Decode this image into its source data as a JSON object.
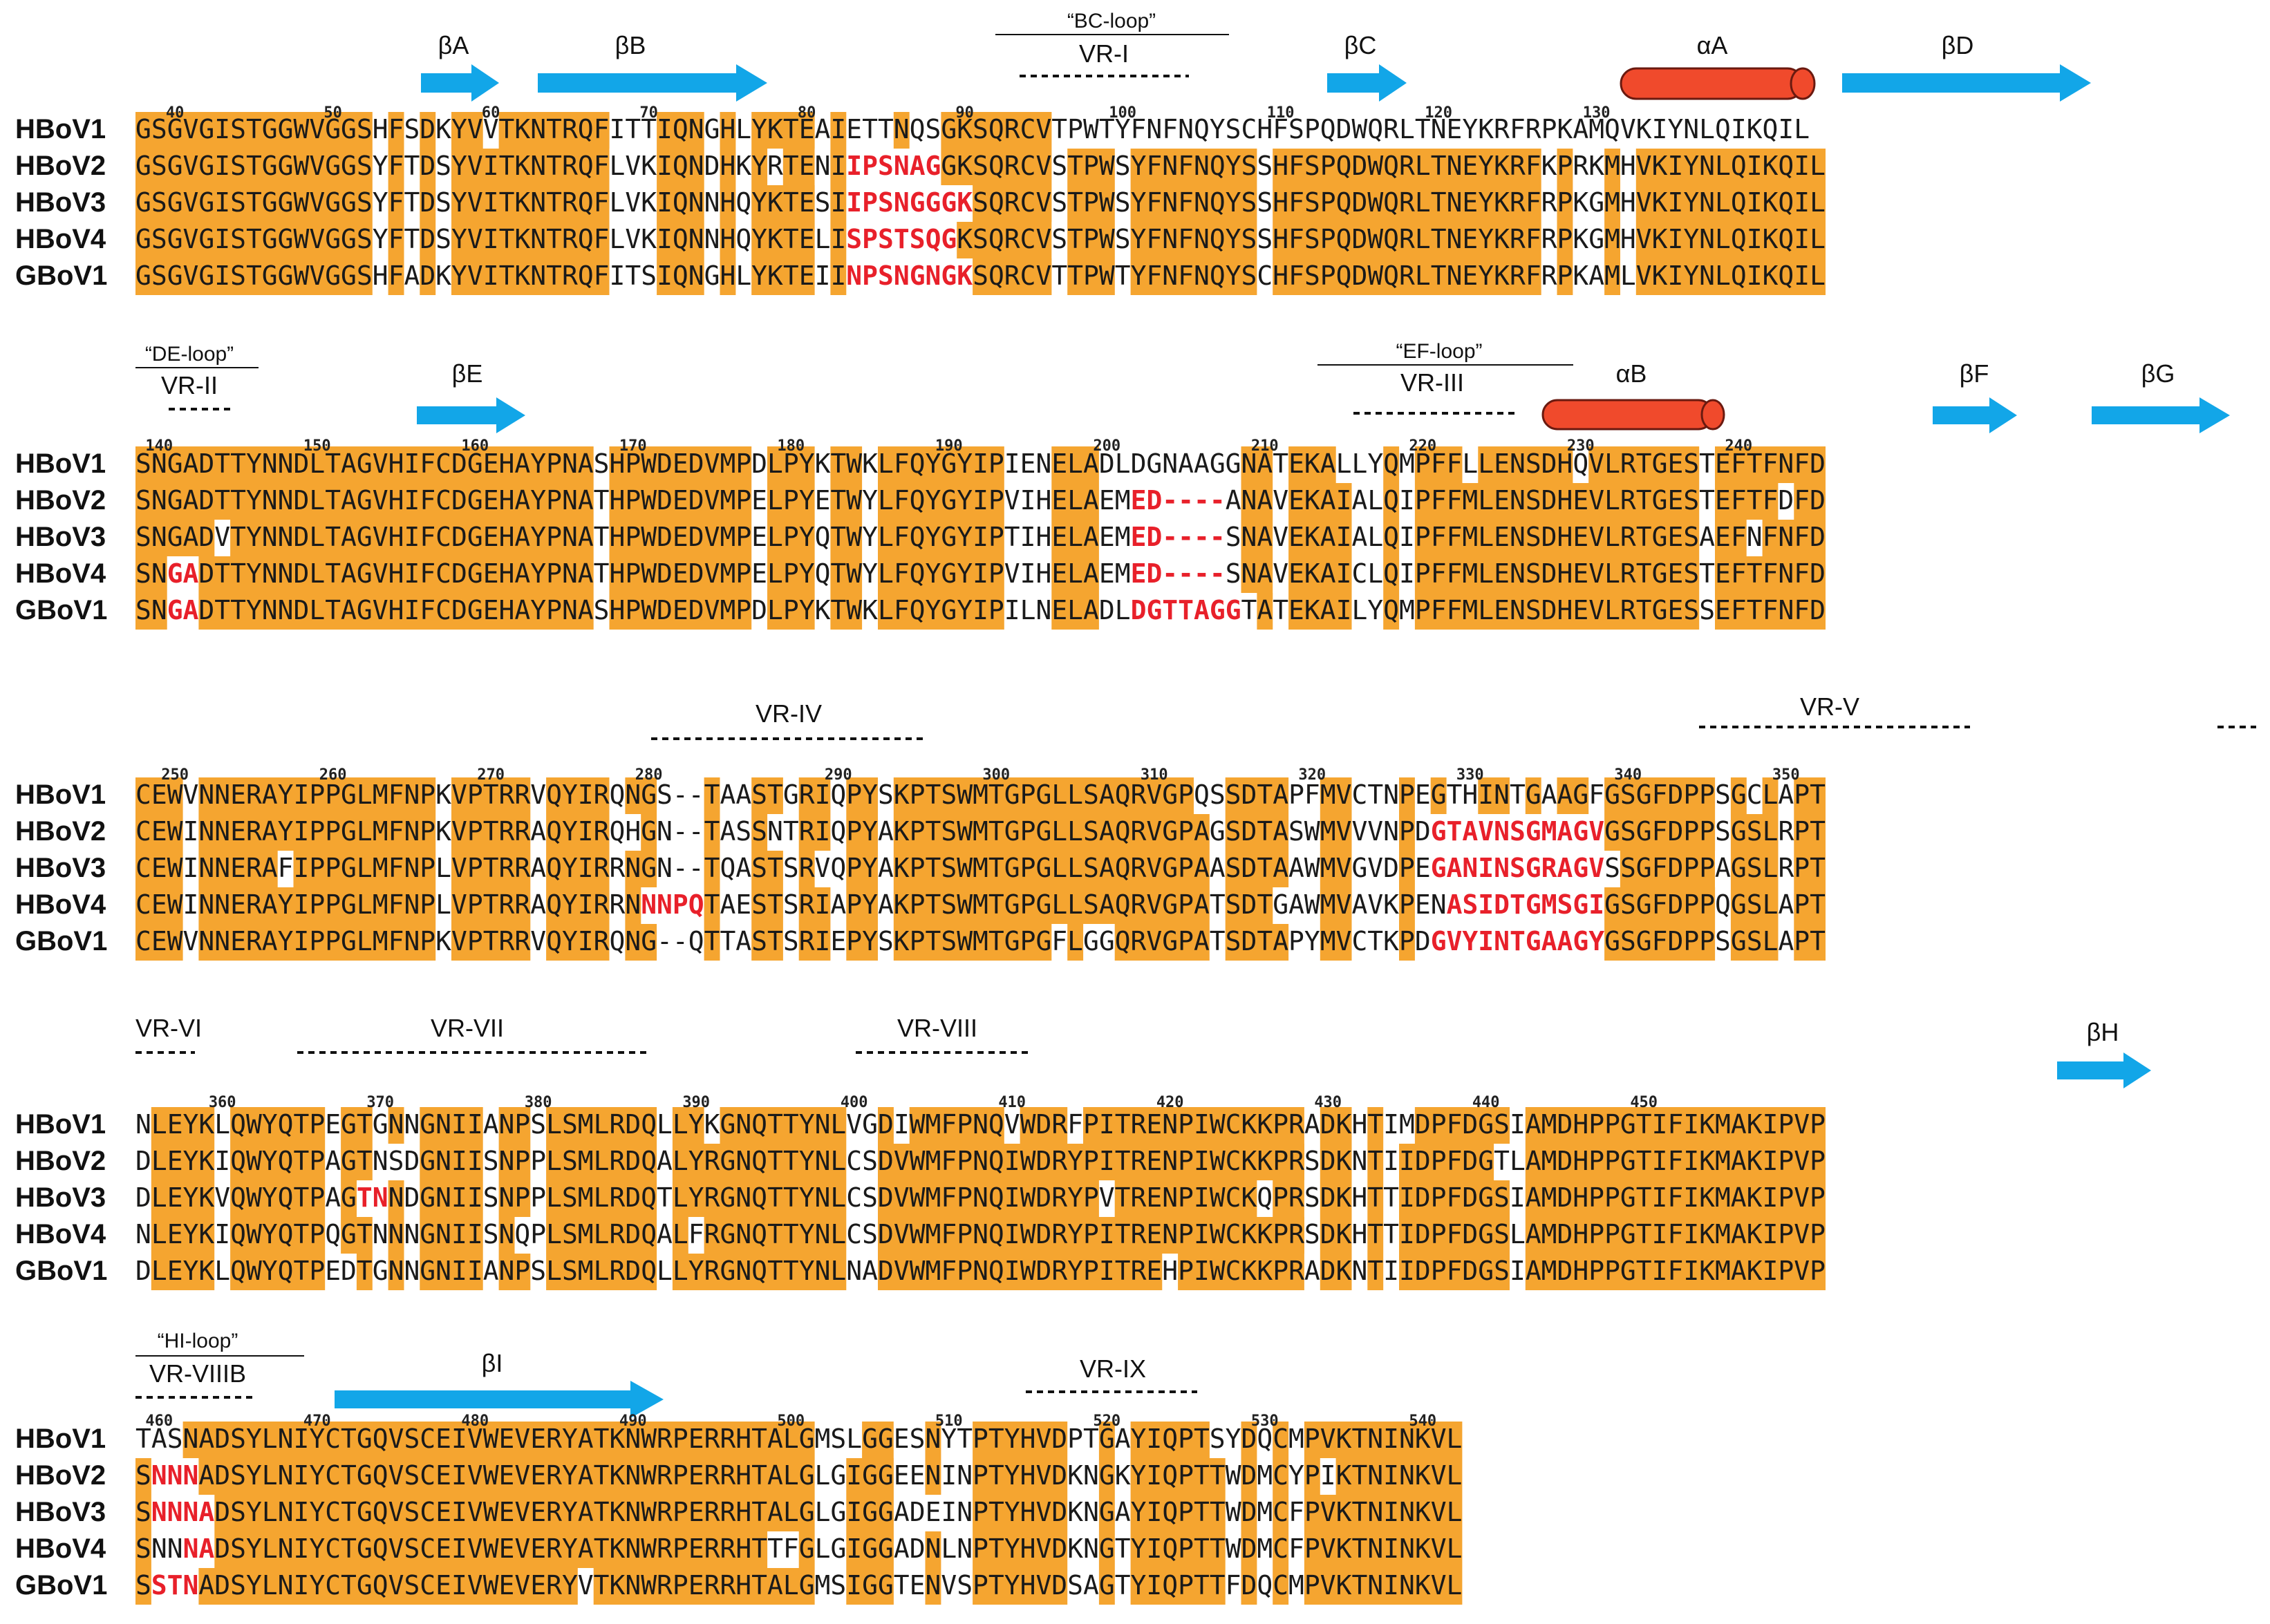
{
  "colors": {
    "highlight": "#f5a530",
    "arrow": "#12a6e8",
    "helix": "#f04a2c",
    "insertion": "#e8202a"
  },
  "organisms": [
    "HBoV1",
    "HBoV2",
    "HBoV3",
    "HBoV4",
    "GBoV1"
  ],
  "blocks": [
    {
      "rows": [
        {
          "name": "HBoV1",
          "segments": [
            {
              "text": "GSGVGISTGGWVGGSHFSDKYVVTKNTRQFITTIQNGHLYKTEAIETTNQSGKSQRCVTPWTYFNFNQYSCHFSPQDWQRLTNEYKRFRPKAMQVKIYNLQIKQIL"
            }
          ]
        },
        {
          "name": "HBoV2",
          "segments": [
            {
              "text": "GSGVGISTGGWVGGSYFTDSYVITKNTRQFLVKIQNDHKYRTENI"
            },
            {
              "text": "IPSNAG",
              "ins": true
            },
            {
              "text": "GKSQRCVSTPWSYFNFNQYSSHFSPQDWQRLTNEYKRFKPRKMHVKIYNLQIKQIL"
            }
          ]
        },
        {
          "name": "HBoV3",
          "segments": [
            {
              "text": "GSGVGISTGGWVGGSYFTDSYVITKNTRQFLVKIQNNHQYKTESI"
            },
            {
              "text": "IPSNGGGK",
              "ins": true
            },
            {
              "text": "SQRCVSTPWSYFNFNQYSSHFSPQDWQRLTNEYKRFRPKGMHVKIYNLQIKQIL"
            }
          ]
        },
        {
          "name": "HBoV4",
          "segments": [
            {
              "text": "GSGVGISTGGWVGGSYFTDSYVITKNTRQFLVKIQNNHQYKTELI"
            },
            {
              "text": "SPSTSQG",
              "ins": true
            },
            {
              "text": "KSQRCVSTPWSYFNFNQYSSHFSPQDWQRLTNEYKRFRPKGMHVKIYNLQIKQIL"
            }
          ]
        },
        {
          "name": "GBoV1",
          "segments": [
            {
              "text": "GSGVGISTGGWVGGSHFADKYVITKNTRQFITSIQNGHLYKTEII"
            },
            {
              "text": "NPSNGNGK",
              "ins": true
            },
            {
              "text": "SQRCVTTPWTYFNFNQYSCHFSPQDWQRLTNEYKRFRPKAMLVKIYNLQIKQIL"
            }
          ]
        }
      ],
      "numbers": [
        "40",
        "50",
        "60",
        "70",
        "80",
        "90",
        "100",
        "110",
        "120",
        "130"
      ],
      "structure": [
        "βA",
        "βB",
        "βC",
        "αA",
        "βD"
      ],
      "loop_labels": [
        "“BC-loop”"
      ],
      "vr_labels": [
        "VR-I"
      ]
    },
    {
      "rows": [
        {
          "name": "HBoV1",
          "segments": [
            {
              "text": "SNGADTTYNNDLTAGVHIFCDGEHAYPNASHPWDEDVMPDLPYKTWKLFQYGYIPIENELADLDGNAAGGNATEKALLYQMPFFLLENSDHQVLRTGESTEFTFNFD"
            }
          ]
        },
        {
          "name": "HBoV2",
          "segments": [
            {
              "text": "SNGADTTYNNDLTAGVHIFCDGEHAYPNATHPWDEDVMPELPYETWYLFQYGYIPVIHELAEM"
            },
            {
              "text": "ED----",
              "ins": true
            },
            {
              "text": "ANAVEKAIALQIPFFMLENSDHEVLRTGESTEFTFDFD"
            }
          ]
        },
        {
          "name": "HBoV3",
          "segments": [
            {
              "text": "SNGADVTYNNDLTAGVHIFCDGEHAYPNATHPWDEDVMPELPYQTWYLFQYGYIPTIHELAEM"
            },
            {
              "text": "ED----",
              "ins": true
            },
            {
              "text": "SNAVEKAIALQIPFFMLENSDHEVLRTGESAEFNFNFD"
            }
          ]
        },
        {
          "name": "HBoV4",
          "segments": [
            {
              "text": "SN"
            },
            {
              "text": "GA",
              "ins": true
            },
            {
              "text": "DTTYNNDLTAGVHIFCDGEHAYPNATHPWDEDVMPELPYQTWYLFQYGYIPVIHELAEM"
            },
            {
              "text": "ED----",
              "ins": true
            },
            {
              "text": "SNAVEKAICLQIPFFMLENSDHEVLRTGESTEFTFNFD"
            }
          ]
        },
        {
          "name": "GBoV1",
          "segments": [
            {
              "text": "SN"
            },
            {
              "text": "GA",
              "ins": true
            },
            {
              "text": "DTTYNNDLTAGVHIFCDGEHAYPNASHPWDEDVMPDLPYKTWKLFQYGYIPILNELADL"
            },
            {
              "text": "DGTTAGG",
              "ins": true
            },
            {
              "text": "TATEKAILYQMPFFMLENSDHEVLRTGESSEFTFNFD"
            }
          ]
        }
      ],
      "numbers": [
        "140",
        "150",
        "160",
        "170",
        "180",
        "190",
        "200",
        "210",
        "220",
        "230",
        "240"
      ],
      "structure": [
        "βE",
        "αB",
        "βF",
        "βG"
      ],
      "loop_labels": [
        "“DE-loop”",
        "“EF-loop”"
      ],
      "vr_labels": [
        "VR-II",
        "VR-III"
      ]
    },
    {
      "rows": [
        {
          "name": "HBoV1",
          "segments": [
            {
              "text": "CEWVNNERAYIPPGLMFNPKVPTRRVQYIRQNGS--TAASTGRIQPYSKPTSWMTGPGLLSAQRVGPQSSDTAPFMVCTNPEGTHINTGAAGFGSGFDPPSGCLAPT"
            }
          ]
        },
        {
          "name": "HBoV2",
          "segments": [
            {
              "text": "CEWINNERAYIPPGLMFNPKVPTRRAQYIRQHGN--TASSNTRIQPYAKPTSWMTGPGLLSAQRVGPAGSDTASWMVVVNPD"
            },
            {
              "text": "GTAVNSGMAGV",
              "ins": true
            },
            {
              "text": "GSGFDPPSGSLRPT"
            }
          ]
        },
        {
          "name": "HBoV3",
          "segments": [
            {
              "text": "CEWINNERAFIPPGLMFNPLVPTRRAQYIRRNGN--TQASTSRVQPYAKPTSWMTGPGLLSAQRVGPAASDTAAWMVGVDPE"
            },
            {
              "text": "GANINSGRAGV",
              "ins": true
            },
            {
              "text": "SSGFDPPAGSLRPT"
            }
          ]
        },
        {
          "name": "HBoV4",
          "segments": [
            {
              "text": "CEWINNERAYIPPGLMFNPLVPTRRAQYIRRN"
            },
            {
              "text": "NNPQ",
              "ins": true
            },
            {
              "text": "TAESTSRIAPYAKPTSWMTGPGLLSAQRVGPATSDTGAWMVAVKPEN"
            },
            {
              "text": "ASIDTGMSGI",
              "ins": true
            },
            {
              "text": "GSGFDPPQGSLAPT"
            }
          ]
        },
        {
          "name": "GBoV1",
          "segments": [
            {
              "text": "CEWVNNERAYIPPGLMFNPKVPTRRVQYIRQNG--QTTASTSRIEPYSKPTSWMTGPGFLGGQRVGPATSDTAPYMVCTKPD"
            },
            {
              "text": "GVYINTGAAGY",
              "ins": true
            },
            {
              "text": "GSGFDPPSGSLAPT"
            }
          ]
        }
      ],
      "numbers": [
        "250",
        "260",
        "270",
        "280",
        "290",
        "300",
        "310",
        "320",
        "330",
        "340",
        "350"
      ],
      "structure": [],
      "loop_labels": [],
      "vr_labels": [
        "VR-IV",
        "VR-V"
      ]
    },
    {
      "rows": [
        {
          "name": "HBoV1",
          "segments": [
            {
              "text": "NLEYKLQWYQTPEGTGNNGNIIANPSLSMLRDQLLYKGNQTTYNLVGDIWMFPNQVWDRFPITRENPIWCKKPRADKHTIMDPFDGSIAMDHPPGTIFIKMAKIPVP"
            }
          ]
        },
        {
          "name": "HBoV2",
          "segments": [
            {
              "text": "DLEYKIQWYQTPAGTNSDGNIISNPPLSMLRDQALYRGNQTTYNLCSDVWMFPNQIWDRYPITRENPIWCKKPRSDKNTIIDPFDGTLAMDHPPGTIFIKMAKIPVP"
            }
          ]
        },
        {
          "name": "HBoV3",
          "segments": [
            {
              "text": "DLEYKVQWYQTPAG"
            },
            {
              "text": "TN",
              "ins": true
            },
            {
              "text": "NDGNIISNPPLSMLRDQTLYRGNQTTYNLCSDVWMFPNQIWDRYPVTRENPIWCKQPRSDKHTTIDPFDGSIAMDHPPGTIFIKMAKIPVP"
            }
          ]
        },
        {
          "name": "HBoV4",
          "segments": [
            {
              "text": "NLEYKIQWYQTPQGTNNNGNIISNQPLSMLRDQALFRGNQTTYNLCSDVWMFPNQIWDRYPITRENPIWCKKPRSDKHTTIDPFDGSLAMDHPPGTIFIKMAKIPVP"
            }
          ]
        },
        {
          "name": "GBoV1",
          "segments": [
            {
              "text": "DLEYKLQWYQTPEDTGNNGNIIANPSLSMLRDQLLYRGNQTTYNLNADVWMFPNQIWDRYPITREHPIWCKKPRADKNTIIDPFDGSIAMDHPPGTIFIKMAKIPVP"
            }
          ]
        }
      ],
      "numbers": [
        "360",
        "370",
        "380",
        "390",
        "400",
        "410",
        "420",
        "430",
        "440",
        "450"
      ],
      "structure": [
        "βH"
      ],
      "loop_labels": [],
      "vr_labels": [
        "VR-VI",
        "VR-VII",
        "VR-VIII"
      ]
    },
    {
      "rows": [
        {
          "name": "HBoV1",
          "segments": [
            {
              "text": "TASNADSYLNIYCTGQVSCEIVWEVERYATKNWRPERRHTALGMSLGGESNYTPTYHVDPTGAYIQPTSYDQCMPVKTNINKVL"
            }
          ]
        },
        {
          "name": "HBoV2",
          "segments": [
            {
              "text": "S"
            },
            {
              "text": "NNN",
              "ins": true
            },
            {
              "text": "ADSYLNIYCTGQVSCEIVWEVERYATKNWRPERRHTALGLGIGGEENINPTYHVDKNGKYIQPTTWDMCYPIKTNINKVL"
            }
          ]
        },
        {
          "name": "HBoV3",
          "segments": [
            {
              "text": "S"
            },
            {
              "text": "NNNA",
              "ins": true
            },
            {
              "text": "DSYLNIYCTGQVSCEIVWEVERYATKNWRPERRHTALGLGIGGADEINPTYHVDKNGAYIQPTTWDMCFPVKTNINKVL"
            }
          ]
        },
        {
          "name": "HBoV4",
          "segments": [
            {
              "text": "SNN"
            },
            {
              "text": "NA",
              "ins": true
            },
            {
              "text": "DSYLNIYCTGQVSCEIVWEVERYATKNWRPERRHTTFGLGIGGADNLNPTYHVDKNGTYIQPTTWDMCFPVKTNINKVL"
            }
          ]
        },
        {
          "name": "GBoV1",
          "segments": [
            {
              "text": "S"
            },
            {
              "text": "STN",
              "ins": true
            },
            {
              "text": "ADSYLNIYCTGQVSCEIVWEVERYVTKNWRPERRHTALGMSIGGTENVSPTYHVDSAGTYIQPTTFDQCMPVKTNINKVL"
            }
          ]
        }
      ],
      "numbers": [
        "460",
        "470",
        "480",
        "490",
        "500",
        "510",
        "520",
        "530",
        "540"
      ],
      "structure": [
        "βI"
      ],
      "loop_labels": [
        "“HI-loop”"
      ],
      "vr_labels": [
        "VR-VIIIB",
        "VR-IX"
      ]
    }
  ]
}
